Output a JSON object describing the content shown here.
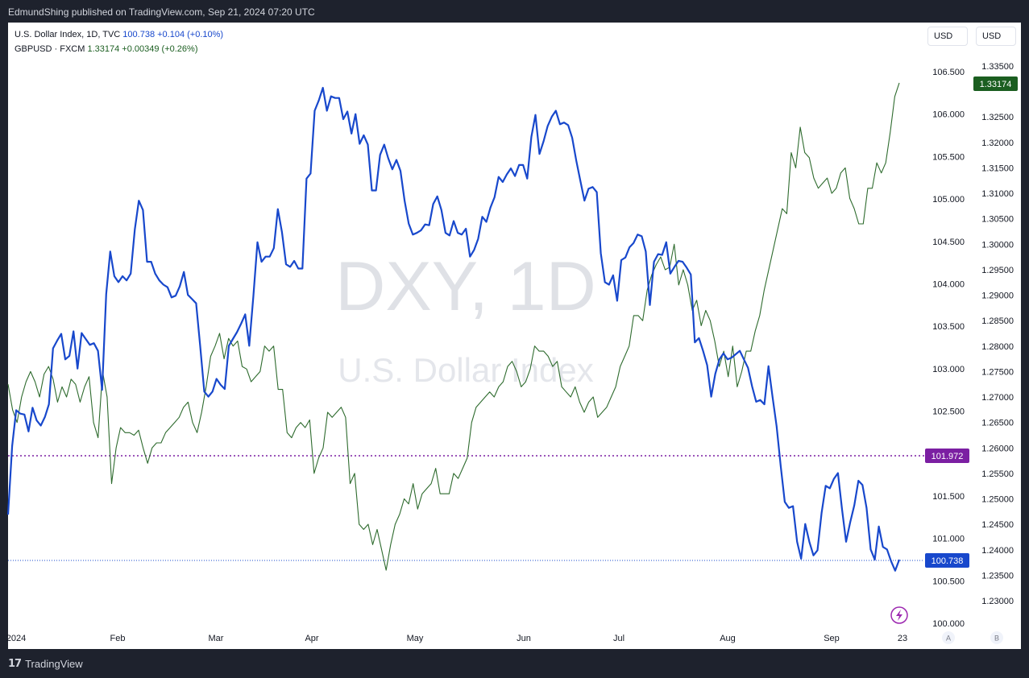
{
  "header": {
    "publish_line": "EdmundShing published on TradingView.com, Sep 21, 2024 07:20 UTC"
  },
  "footer": {
    "brand_mark": "17",
    "brand_name": "TradingView"
  },
  "legend": {
    "dxy": {
      "label": "U.S. Dollar Index, 1D, TVC",
      "value": "100.738",
      "change": "+0.104 (+0.10%)"
    },
    "gbpusd": {
      "label": "GBPUSD · FXCM",
      "value": "1.33174",
      "change": "+0.00349 (+0.26%)"
    }
  },
  "currency_buttons": [
    "USD",
    "USD"
  ],
  "watermark": {
    "symbol": "DXY, 1D",
    "name": "U.S. Dollar Index"
  },
  "colors": {
    "dxy": "#1848cc",
    "gbpusd": "#2e6b2e",
    "marker": "#7b1fa2",
    "gbpusd_label_bg": "#1b5e20"
  },
  "scale_buttons": [
    "A",
    "B"
  ],
  "chart_data": {
    "type": "line",
    "x_ticks": [
      "2024",
      "Feb",
      "Mar",
      "Apr",
      "May",
      "Jun",
      "Jul",
      "Aug",
      "Sep",
      "23"
    ],
    "y_left_ticks": [
      "106.500",
      "106.000",
      "105.500",
      "105.000",
      "104.500",
      "104.000",
      "103.500",
      "103.000",
      "102.500",
      "101.500",
      "101.000",
      "100.500",
      "100.000"
    ],
    "y_right_ticks": [
      "1.33500",
      "1.32500",
      "1.32000",
      "1.31500",
      "1.31000",
      "1.30500",
      "1.30000",
      "1.29500",
      "1.29000",
      "1.28500",
      "1.28000",
      "1.27500",
      "1.27000",
      "1.26500",
      "1.26000",
      "1.25500",
      "1.25000",
      "1.24500",
      "1.24000",
      "1.23500",
      "1.23000"
    ],
    "price_labels": {
      "marker": "101.972",
      "dxy_last": "100.738",
      "gbpusd_last": "1.33174"
    },
    "series": [
      {
        "values": [
          101.28,
          102.09,
          102.51,
          102.47,
          102.46,
          102.26,
          102.54,
          102.39,
          102.33,
          102.43,
          102.58,
          103.24,
          103.33,
          103.41,
          103.11,
          103.15,
          103.44,
          103.0,
          103.42,
          103.35,
          103.28,
          103.3,
          103.21,
          102.75,
          103.88,
          104.38,
          104.09,
          104.02,
          104.09,
          104.04,
          104.12,
          104.64,
          104.98,
          104.87,
          104.26,
          104.26,
          104.12,
          104.04,
          103.99,
          103.96,
          103.84,
          103.86,
          103.97,
          104.14,
          103.87,
          103.82,
          103.77,
          103.27,
          102.73,
          102.67,
          102.73,
          102.88,
          102.81,
          102.76,
          103.27,
          103.35,
          103.43,
          103.53,
          103.64,
          103.27,
          103.85,
          104.49,
          104.26,
          104.32,
          104.32,
          104.42,
          104.88,
          104.61,
          104.23,
          104.2,
          104.27,
          104.18,
          104.18,
          105.24,
          105.3,
          106.04,
          106.16,
          106.31,
          106.04,
          106.21,
          106.19,
          106.19,
          105.94,
          106.03,
          105.77,
          106.0,
          105.65,
          105.75,
          105.64,
          105.1,
          105.1,
          105.52,
          105.64,
          105.48,
          105.35,
          105.46,
          105.33,
          104.98,
          104.71,
          104.58,
          104.6,
          104.63,
          104.7,
          104.69,
          104.94,
          105.03,
          104.87,
          104.6,
          104.57,
          104.74,
          104.6,
          104.58,
          104.65,
          104.32,
          104.4,
          104.53,
          104.79,
          104.73,
          104.9,
          105.02,
          105.26,
          105.2,
          105.29,
          105.36,
          105.27,
          105.4,
          105.4,
          105.24,
          105.73,
          105.99,
          105.53,
          105.68,
          105.86,
          105.97,
          106.04,
          105.88,
          105.9,
          105.87,
          105.72,
          105.45,
          105.21,
          104.98,
          105.12,
          105.14,
          105.08,
          104.36,
          104.02,
          103.99,
          104.1,
          103.8,
          104.28,
          104.31,
          104.43,
          104.48,
          104.58,
          104.56,
          104.38,
          103.75,
          104.26,
          104.35,
          104.34,
          104.49,
          104.12,
          104.2,
          104.27,
          104.26,
          104.19,
          104.11,
          103.31,
          103.36,
          103.21,
          103.04,
          102.67,
          102.94,
          103.11,
          103.18,
          103.11,
          103.13,
          103.17,
          103.21,
          103.11,
          103.01,
          102.79,
          102.61,
          102.63,
          102.58,
          103.03,
          102.67,
          102.32,
          101.85,
          101.43,
          101.36,
          101.38,
          100.96,
          100.76,
          101.17,
          100.96,
          100.8,
          100.86,
          101.3,
          101.62,
          101.59,
          101.7,
          101.77,
          101.34,
          100.96,
          101.19,
          101.39,
          101.68,
          101.63,
          101.36,
          100.87,
          100.75,
          101.14,
          100.9,
          100.87,
          100.73,
          100.62,
          100.75
        ],
        "start_value": 101.28
      },
      {
        "values": [
          1.2725,
          1.2675,
          1.265,
          1.27,
          1.273,
          1.275,
          1.273,
          1.27,
          1.2745,
          1.276,
          1.2735,
          1.269,
          1.272,
          1.27,
          1.2735,
          1.2725,
          1.269,
          1.272,
          1.274,
          1.265,
          1.262,
          1.275,
          1.27,
          1.253,
          1.26,
          1.264,
          1.263,
          1.263,
          1.2625,
          1.2635,
          1.26,
          1.257,
          1.26,
          1.261,
          1.261,
          1.263,
          1.264,
          1.265,
          1.266,
          1.268,
          1.269,
          1.265,
          1.263,
          1.267,
          1.272,
          1.278,
          1.28,
          1.2825,
          1.2775,
          1.2815,
          1.28,
          1.281,
          1.276,
          1.2755,
          1.273,
          1.274,
          1.275,
          1.28,
          1.279,
          1.28,
          1.2715,
          1.2715,
          1.263,
          1.262,
          1.264,
          1.265,
          1.264,
          1.2655,
          1.255,
          1.258,
          1.26,
          1.267,
          1.266,
          1.267,
          1.268,
          1.266,
          1.253,
          1.255,
          1.245,
          1.244,
          1.245,
          1.241,
          1.244,
          1.24,
          1.236,
          1.241,
          1.245,
          1.247,
          1.25,
          1.249,
          1.253,
          1.248,
          1.251,
          1.252,
          1.253,
          1.256,
          1.251,
          1.251,
          1.251,
          1.255,
          1.254,
          1.256,
          1.258,
          1.265,
          1.268,
          1.269,
          1.27,
          1.271,
          1.27,
          1.272,
          1.273,
          1.276,
          1.277,
          1.275,
          1.272,
          1.273,
          1.2755,
          1.28,
          1.279,
          1.279,
          1.278,
          1.276,
          1.277,
          1.272,
          1.271,
          1.27,
          1.272,
          1.269,
          1.267,
          1.269,
          1.27,
          1.266,
          1.267,
          1.268,
          1.27,
          1.272,
          1.276,
          1.278,
          1.28,
          1.286,
          1.286,
          1.285,
          1.291,
          1.294,
          1.296,
          1.2975,
          1.295,
          1.2955,
          1.3,
          1.292,
          1.295,
          1.292,
          1.287,
          1.289,
          1.284,
          1.287,
          1.285,
          1.281,
          1.276,
          1.279,
          1.274,
          1.28,
          1.272,
          1.275,
          1.279,
          1.279,
          1.283,
          1.286,
          1.291,
          1.295,
          1.299,
          1.303,
          1.307,
          1.306,
          1.318,
          1.315,
          1.323,
          1.318,
          1.317,
          1.313,
          1.311,
          1.312,
          1.313,
          1.31,
          1.311,
          1.314,
          1.315,
          1.309,
          1.307,
          1.304,
          1.304,
          1.311,
          1.311,
          1.316,
          1.314,
          1.316,
          1.322,
          1.329,
          1.3317
        ]
      }
    ]
  }
}
